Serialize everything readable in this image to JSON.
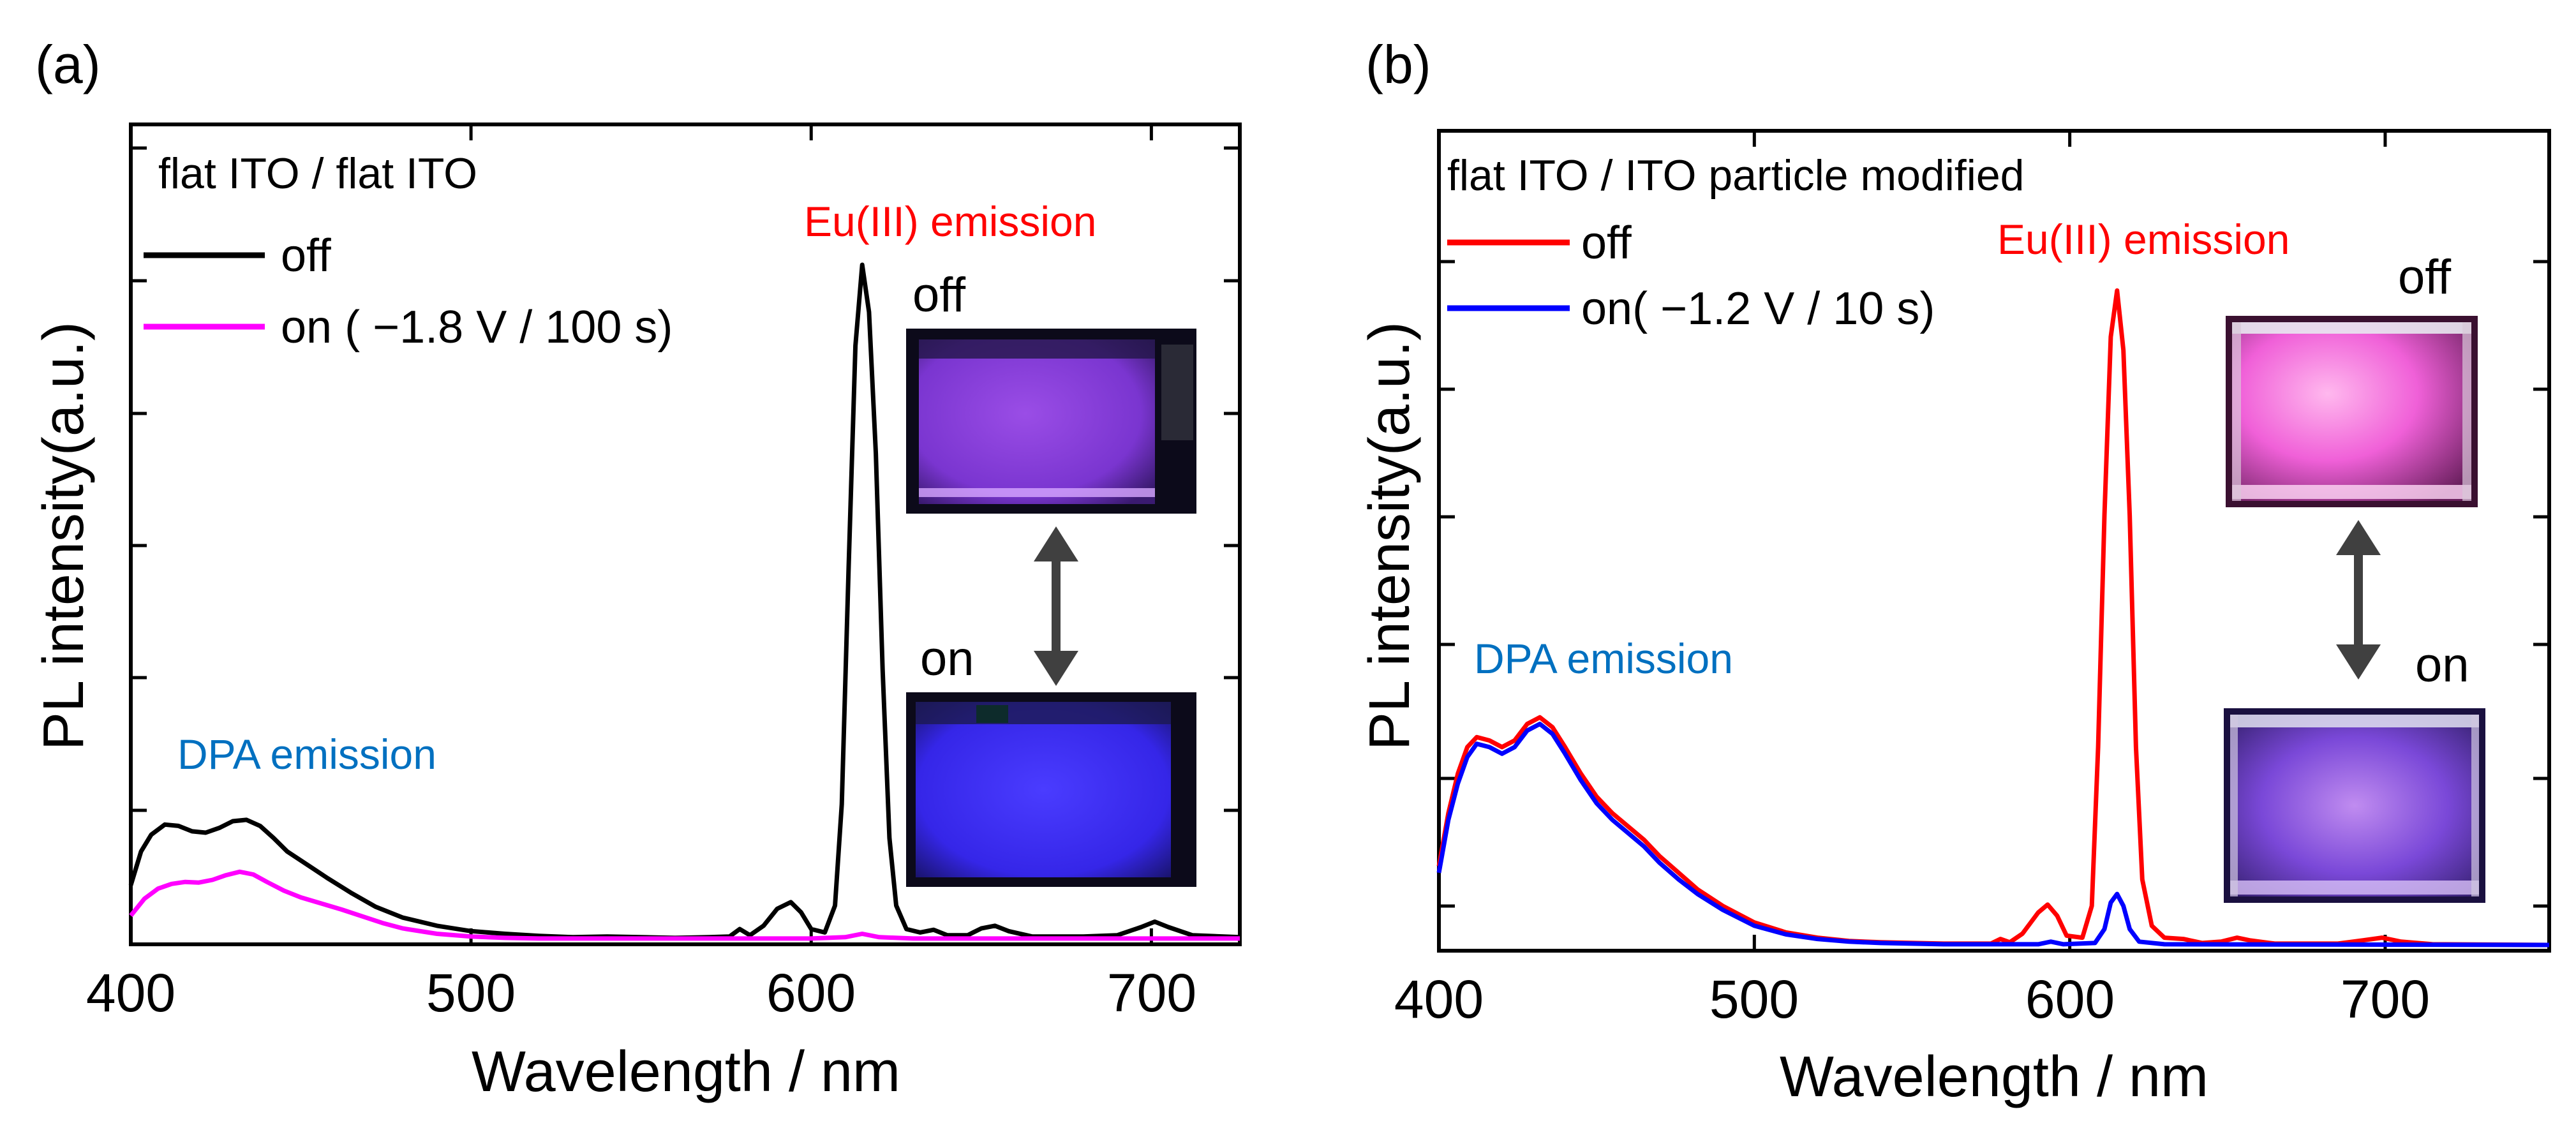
{
  "colors": {
    "off_a": "#000000",
    "on_a": "#ff00ff",
    "off_b": "#ff0000",
    "on_b": "#0000ff",
    "eu_label": "#ff0000",
    "dpa_label": "#0070c0",
    "arrow": "#404040"
  },
  "chart_data": [
    {
      "type": "line",
      "panel_label": "(a)",
      "title": "flat ITO / flat ITO",
      "xlabel": "Wavelength / nm",
      "ylabel": "PL intensity(a.u.)",
      "xlim": [
        400,
        726
      ],
      "ylim": [
        0,
        1.0
      ],
      "xticks": [
        400,
        500,
        600,
        700
      ],
      "tick_labels": [
        "400",
        "500",
        "600",
        "700"
      ],
      "yticks_labeled": false,
      "grid": false,
      "legend_position": "top-left",
      "series": [
        {
          "name": "off",
          "color": "#000000",
          "points": [
            [
              400,
              0.08
            ],
            [
              403,
              0.13
            ],
            [
              406,
              0.155
            ],
            [
              410,
              0.17
            ],
            [
              414,
              0.168
            ],
            [
              418,
              0.16
            ],
            [
              422,
              0.158
            ],
            [
              426,
              0.165
            ],
            [
              430,
              0.175
            ],
            [
              434,
              0.177
            ],
            [
              438,
              0.168
            ],
            [
              442,
              0.15
            ],
            [
              446,
              0.13
            ],
            [
              452,
              0.11
            ],
            [
              458,
              0.09
            ],
            [
              465,
              0.068
            ],
            [
              472,
              0.048
            ],
            [
              480,
              0.032
            ],
            [
              490,
              0.02
            ],
            [
              500,
              0.012
            ],
            [
              510,
              0.008
            ],
            [
              520,
              0.005
            ],
            [
              530,
              0.003
            ],
            [
              540,
              0.004
            ],
            [
              550,
              0.003
            ],
            [
              560,
              0.002
            ],
            [
              570,
              0.003
            ],
            [
              576,
              0.004
            ],
            [
              579,
              0.015
            ],
            [
              582,
              0.006
            ],
            [
              586,
              0.02
            ],
            [
              590,
              0.045
            ],
            [
              594,
              0.055
            ],
            [
              597,
              0.04
            ],
            [
              600,
              0.015
            ],
            [
              604,
              0.01
            ],
            [
              607,
              0.05
            ],
            [
              609,
              0.2
            ],
            [
              611,
              0.55
            ],
            [
              613,
              0.88
            ],
            [
              615,
              1.0
            ],
            [
              617,
              0.93
            ],
            [
              619,
              0.72
            ],
            [
              621,
              0.4
            ],
            [
              623,
              0.15
            ],
            [
              625,
              0.05
            ],
            [
              628,
              0.015
            ],
            [
              632,
              0.01
            ],
            [
              636,
              0.014
            ],
            [
              640,
              0.006
            ],
            [
              646,
              0.006
            ],
            [
              650,
              0.016
            ],
            [
              654,
              0.02
            ],
            [
              658,
              0.012
            ],
            [
              665,
              0.004
            ],
            [
              680,
              0.004
            ],
            [
              690,
              0.006
            ],
            [
              697,
              0.018
            ],
            [
              701,
              0.026
            ],
            [
              705,
              0.018
            ],
            [
              712,
              0.006
            ],
            [
              726,
              0.003
            ]
          ]
        },
        {
          "name": "on ( −1.8 V / 100 s)",
          "color": "#ff00ff",
          "points": [
            [
              400,
              0.035
            ],
            [
              404,
              0.06
            ],
            [
              408,
              0.075
            ],
            [
              412,
              0.082
            ],
            [
              416,
              0.085
            ],
            [
              420,
              0.084
            ],
            [
              424,
              0.088
            ],
            [
              428,
              0.095
            ],
            [
              432,
              0.1
            ],
            [
              436,
              0.096
            ],
            [
              440,
              0.085
            ],
            [
              445,
              0.072
            ],
            [
              450,
              0.062
            ],
            [
              456,
              0.053
            ],
            [
              462,
              0.044
            ],
            [
              468,
              0.034
            ],
            [
              474,
              0.024
            ],
            [
              480,
              0.016
            ],
            [
              490,
              0.008
            ],
            [
              500,
              0.004
            ],
            [
              510,
              0.002
            ],
            [
              520,
              0.001
            ],
            [
              560,
              0.001
            ],
            [
              600,
              0.001
            ],
            [
              610,
              0.003
            ],
            [
              615,
              0.008
            ],
            [
              620,
              0.003
            ],
            [
              630,
              0.001
            ],
            [
              726,
              0.001
            ]
          ]
        }
      ],
      "annotations": {
        "eu": "Eu(III) emission",
        "dpa": "DPA emission",
        "photo_off": "off",
        "photo_on": "on"
      }
    },
    {
      "type": "line",
      "panel_label": "(b)",
      "title": "flat ITO / ITO particle modified",
      "xlabel": "Wavelength / nm",
      "ylabel": "PL intensity(a.u.)",
      "xlim": [
        400,
        752
      ],
      "ylim": [
        0,
        1.0
      ],
      "xticks": [
        400,
        500,
        600,
        700
      ],
      "tick_labels": [
        "400",
        "500",
        "600",
        "700"
      ],
      "yticks_labeled": false,
      "grid": false,
      "legend_position": "top-left",
      "series": [
        {
          "name": "off",
          "color": "#ff0000",
          "points": [
            [
              400,
              0.12
            ],
            [
              403,
              0.2
            ],
            [
              406,
              0.26
            ],
            [
              409,
              0.3
            ],
            [
              412,
              0.315
            ],
            [
              416,
              0.31
            ],
            [
              420,
              0.3
            ],
            [
              424,
              0.31
            ],
            [
              428,
              0.335
            ],
            [
              432,
              0.345
            ],
            [
              436,
              0.33
            ],
            [
              440,
              0.3
            ],
            [
              445,
              0.26
            ],
            [
              450,
              0.225
            ],
            [
              455,
              0.2
            ],
            [
              460,
              0.18
            ],
            [
              465,
              0.16
            ],
            [
              470,
              0.135
            ],
            [
              476,
              0.11
            ],
            [
              482,
              0.085
            ],
            [
              490,
              0.06
            ],
            [
              500,
              0.035
            ],
            [
              510,
              0.02
            ],
            [
              520,
              0.012
            ],
            [
              530,
              0.007
            ],
            [
              540,
              0.005
            ],
            [
              560,
              0.003
            ],
            [
              575,
              0.003
            ],
            [
              578,
              0.01
            ],
            [
              581,
              0.005
            ],
            [
              585,
              0.018
            ],
            [
              590,
              0.05
            ],
            [
              593,
              0.062
            ],
            [
              596,
              0.045
            ],
            [
              599,
              0.015
            ],
            [
              604,
              0.012
            ],
            [
              607,
              0.06
            ],
            [
              609,
              0.3
            ],
            [
              611,
              0.65
            ],
            [
              613,
              0.92
            ],
            [
              615,
              0.99
            ],
            [
              617,
              0.9
            ],
            [
              619,
              0.65
            ],
            [
              621,
              0.3
            ],
            [
              623,
              0.1
            ],
            [
              626,
              0.03
            ],
            [
              630,
              0.012
            ],
            [
              636,
              0.01
            ],
            [
              642,
              0.004
            ],
            [
              648,
              0.006
            ],
            [
              653,
              0.012
            ],
            [
              657,
              0.008
            ],
            [
              665,
              0.003
            ],
            [
              685,
              0.003
            ],
            [
              693,
              0.008
            ],
            [
              699,
              0.012
            ],
            [
              705,
              0.006
            ],
            [
              715,
              0.002
            ],
            [
              752,
              0.001
            ]
          ]
        },
        {
          "name": "on( −1.2 V / 10 s)",
          "color": "#0000ff",
          "points": [
            [
              400,
              0.11
            ],
            [
              403,
              0.19
            ],
            [
              406,
              0.245
            ],
            [
              409,
              0.285
            ],
            [
              412,
              0.305
            ],
            [
              416,
              0.3
            ],
            [
              420,
              0.29
            ],
            [
              424,
              0.3
            ],
            [
              428,
              0.325
            ],
            [
              432,
              0.335
            ],
            [
              436,
              0.32
            ],
            [
              440,
              0.29
            ],
            [
              445,
              0.25
            ],
            [
              450,
              0.215
            ],
            [
              455,
              0.19
            ],
            [
              460,
              0.17
            ],
            [
              465,
              0.15
            ],
            [
              470,
              0.125
            ],
            [
              476,
              0.1
            ],
            [
              482,
              0.078
            ],
            [
              490,
              0.054
            ],
            [
              500,
              0.03
            ],
            [
              510,
              0.017
            ],
            [
              520,
              0.01
            ],
            [
              530,
              0.006
            ],
            [
              540,
              0.004
            ],
            [
              560,
              0.002
            ],
            [
              590,
              0.002
            ],
            [
              594,
              0.006
            ],
            [
              598,
              0.002
            ],
            [
              608,
              0.004
            ],
            [
              611,
              0.025
            ],
            [
              613,
              0.065
            ],
            [
              615,
              0.078
            ],
            [
              617,
              0.06
            ],
            [
              619,
              0.025
            ],
            [
              622,
              0.006
            ],
            [
              630,
              0.002
            ],
            [
              752,
              0.001
            ]
          ]
        }
      ],
      "annotations": {
        "eu": "Eu(III) emission",
        "dpa": "DPA emission",
        "photo_off": "off",
        "photo_on": "on"
      }
    }
  ]
}
